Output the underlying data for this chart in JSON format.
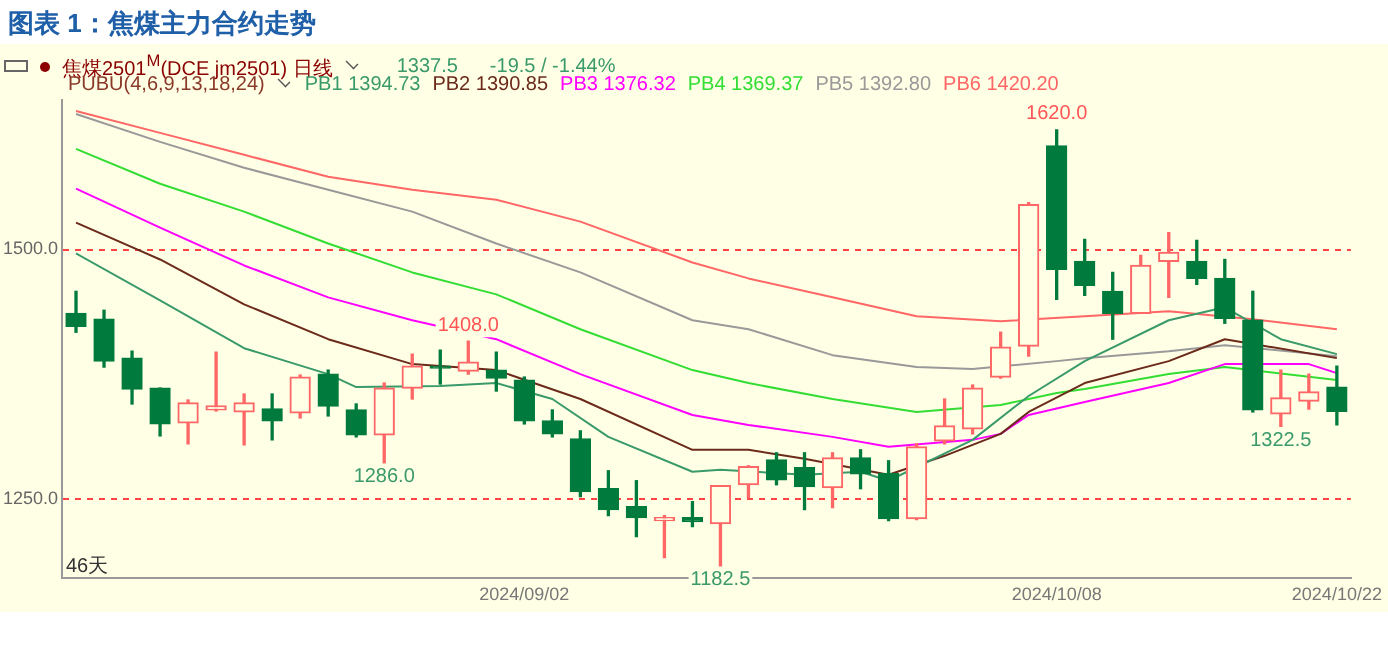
{
  "chart_data": {
    "type": "candlestick",
    "title": "图表 1：焦煤主力合约走势",
    "subtitle": "焦煤2501$^{M}$(DCE jm2501)  日线",
    "legend_title": "PUBU(4,6,9,13,18,24)",
    "legend": "top left",
    "categories": [
      null,
      null,
      null,
      null,
      null,
      null,
      null,
      null,
      null,
      null,
      null,
      null,
      null,
      null,
      null,
      null,
      "2024/09/02",
      null,
      null,
      null,
      null,
      null,
      null,
      null,
      null,
      null,
      null,
      null,
      null,
      null,
      null,
      null,
      null,
      null,
      null,
      "2024/10/08",
      null,
      null,
      null,
      null,
      null,
      null,
      null,
      null,
      null,
      "2024/10/22"
    ],
    "ohlc": [
      [
        1436,
        1458,
        1417,
        1423
      ],
      [
        1430,
        1439,
        1382,
        1388
      ],
      [
        1391,
        1398,
        1345,
        1360
      ],
      [
        1361,
        1361,
        1313,
        1325
      ],
      [
        1326,
        1349,
        1305,
        1346
      ],
      [
        1339,
        1397,
        1338,
        1343
      ],
      [
        1337,
        1355,
        1304,
        1346
      ],
      [
        1340,
        1355,
        1309,
        1328
      ],
      [
        1336,
        1374,
        1331,
        1372
      ],
      [
        1375,
        1379,
        1333,
        1343
      ],
      [
        1339,
        1345,
        1312,
        1314
      ],
      [
        1314,
        1366,
        1286,
        1361
      ],
      [
        1361,
        1395,
        1350,
        1383
      ],
      [
        1383,
        1399,
        1365,
        1381
      ],
      [
        1378,
        1408,
        1375,
        1387
      ],
      [
        1379,
        1397,
        1358,
        1371
      ],
      [
        1369,
        1372,
        1325,
        1328
      ],
      [
        1328,
        1339,
        1312,
        1315
      ],
      [
        1310,
        1318,
        1252,
        1257
      ],
      [
        1260,
        1278,
        1233,
        1239
      ],
      [
        1242,
        1268,
        1212,
        1231
      ],
      [
        1228,
        1233,
        1191,
        1231
      ],
      [
        1231,
        1247,
        1222,
        1227
      ],
      [
        1225,
        1263,
        1182.5,
        1263
      ],
      [
        1264,
        1283,
        1251,
        1282
      ],
      [
        1289,
        1296,
        1264,
        1269
      ],
      [
        1281,
        1296,
        1239,
        1262
      ],
      [
        1261,
        1296,
        1241,
        1291
      ],
      [
        1291,
        1299,
        1260,
        1275
      ],
      [
        1275,
        1288,
        1228,
        1230
      ],
      [
        1230,
        1305,
        1229,
        1302
      ],
      [
        1308,
        1350,
        1305,
        1323
      ],
      [
        1320,
        1364,
        1315,
        1361
      ],
      [
        1372,
        1417,
        1371,
        1402
      ],
      [
        1403,
        1547,
        1393,
        1545
      ],
      [
        1604,
        1620,
        1450,
        1480
      ],
      [
        1488,
        1510,
        1454,
        1464
      ],
      [
        1458,
        1477,
        1410,
        1436
      ],
      [
        1436,
        1494,
        1436,
        1484
      ],
      [
        1488,
        1517,
        1452,
        1497
      ],
      [
        1488,
        1509,
        1465,
        1471
      ],
      [
        1471,
        1490,
        1426,
        1431
      ],
      [
        1429,
        1458,
        1337,
        1339
      ],
      [
        1335,
        1379,
        1322.5,
        1351
      ],
      [
        1348,
        1375,
        1340,
        1357
      ],
      [
        1362,
        1383,
        1324,
        1337.5
      ]
    ],
    "colors": [
      "#007a3d",
      "#007a3d",
      "#007a3d",
      "#007a3d",
      "#ff6666",
      "#ff6666",
      "#ff6666",
      "#007a3d",
      "#ff6666",
      "#007a3d",
      "#007a3d",
      "#ff6666",
      "#ff6666",
      "#007a3d",
      "#ff6666",
      "#007a3d",
      "#007a3d",
      "#007a3d",
      "#007a3d",
      "#007a3d",
      "#007a3d",
      "#ff6666",
      "#007a3d",
      "#ff6666",
      "#ff6666",
      "#007a3d",
      "#007a3d",
      "#ff6666",
      "#007a3d",
      "#007a3d",
      "#ff6666",
      "#ff6666",
      "#ff6666",
      "#ff6666",
      "#ff6666",
      "#007a3d",
      "#007a3d",
      "#007a3d",
      "#ff6666",
      "#ff6666",
      "#007a3d",
      "#007a3d",
      "#007a3d",
      "#ff6666",
      "#ff6666",
      "#007a3d"
    ],
    "series": [
      {
        "type": "line",
        "name": "PB1 1394.73",
        "color": "#3a9a6a",
        "values": [
          1496,
          null,
          null,
          1449,
          null,
          null,
          1401,
          null,
          null,
          1375,
          1362,
          null,
          null,
          1363,
          null,
          1366,
          null,
          1350,
          null,
          1312,
          null,
          null,
          1277,
          1279,
          null,
          null,
          1274,
          null,
          1277,
          1268,
          null,
          null,
          1309,
          null,
          1353,
          null,
          1388,
          null,
          null,
          1429,
          null,
          1442,
          null,
          1410,
          null,
          1395
        ]
      },
      {
        "type": "line",
        "name": "PB2 1390.85",
        "color": "#6b2a1a",
        "values": [
          1527,
          null,
          null,
          1490,
          null,
          null,
          1445,
          null,
          null,
          1410,
          null,
          null,
          1385,
          null,
          null,
          1379,
          null,
          null,
          1350,
          null,
          null,
          null,
          1299,
          null,
          1299,
          null,
          1290,
          null,
          null,
          1274,
          null,
          1293,
          null,
          1315,
          1337,
          null,
          1366,
          null,
          null,
          1388,
          null,
          1410,
          null,
          null,
          null,
          1391
        ]
      },
      {
        "type": "line",
        "name": "PB3 1376.32",
        "color": "#ff00ff",
        "values": [
          1561,
          null,
          null,
          1522,
          null,
          null,
          1484,
          null,
          null,
          1452,
          null,
          null,
          1429,
          null,
          null,
          1410,
          null,
          null,
          1375,
          null,
          null,
          null,
          1334,
          null,
          1324,
          null,
          null,
          1312,
          null,
          1302,
          null,
          null,
          1309,
          1315,
          1334,
          null,
          1347,
          null,
          null,
          1366,
          null,
          1385,
          null,
          null,
          1385,
          1376
        ]
      },
      {
        "type": "line",
        "name": "PB4 1369.37",
        "color": "#33dd33",
        "values": [
          1601,
          null,
          null,
          1566,
          null,
          null,
          1538,
          null,
          null,
          1506,
          null,
          null,
          1477,
          null,
          null,
          1455,
          null,
          null,
          1420,
          null,
          null,
          null,
          1379,
          null,
          1366,
          null,
          null,
          1350,
          null,
          null,
          1337,
          null,
          null,
          1344,
          null,
          1356,
          1360,
          null,
          null,
          1375,
          null,
          1382,
          null,
          null,
          null,
          1369
        ]
      },
      {
        "type": "line",
        "name": "PB5 1392.80",
        "color": "#999999",
        "values": [
          1636,
          null,
          null,
          1608,
          null,
          null,
          1582,
          null,
          null,
          1560,
          null,
          null,
          1538,
          null,
          null,
          1506,
          null,
          null,
          1477,
          null,
          null,
          null,
          1429,
          null,
          1420,
          null,
          null,
          1394,
          null,
          null,
          1382,
          null,
          1380,
          null,
          null,
          1388,
          1391,
          null,
          null,
          1398,
          null,
          1404,
          null,
          null,
          null,
          1393
        ]
      },
      {
        "type": "line",
        "name": "PB6 1420.20",
        "color": "#ff6666",
        "values": [
          1639,
          null,
          null,
          1617,
          null,
          null,
          1595,
          null,
          null,
          1573,
          null,
          null,
          1560,
          null,
          null,
          1550,
          null,
          null,
          1528,
          null,
          null,
          null,
          1487,
          null,
          1471,
          null,
          null,
          1452,
          null,
          null,
          1433,
          null,
          null,
          1428,
          null,
          null,
          1433,
          null,
          null,
          1438,
          null,
          null,
          1430,
          null,
          null,
          1420
        ]
      }
    ],
    "ylim": [
      1170,
      1650
    ],
    "yticks": [
      {
        "value": 1250,
        "label": "1250.0"
      },
      {
        "value": 1500,
        "label": "1500.0"
      }
    ],
    "grid": "y",
    "annotations": [
      "1337.5",
      "-19.5 / -1.44%",
      "46天",
      {
        "text": "1620.0",
        "y": 1620
      },
      {
        "text": "1408.0",
        "y": 1408
      },
      {
        "text": "1286.0",
        "y": 1286
      },
      {
        "text": "1182.5",
        "y": 1182.5
      },
      {
        "text": "1322.5",
        "y": 1322.5
      }
    ]
  }
}
